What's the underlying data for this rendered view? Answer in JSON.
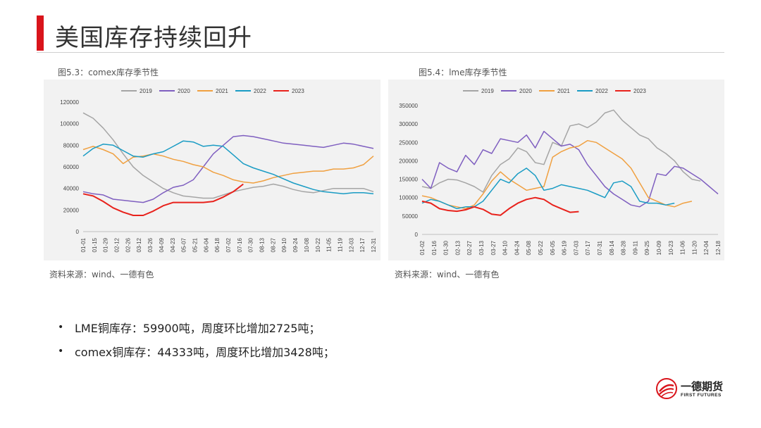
{
  "header": {
    "title": "美国库存持续回升"
  },
  "figures": [
    {
      "caption": "图5.3：comex库存季节性",
      "source": "资料来源：wind、一德有色"
    },
    {
      "caption": "图5.4：lme库存季节性",
      "source": "资料来源：wind、一德有色"
    }
  ],
  "bullets": [
    {
      "text": "LME铜库存：59900吨，周度环比增加2725吨；"
    },
    {
      "text": "comex铜库存：44333吨，周度环比增加3428吨；"
    }
  ],
  "logo": {
    "cn": "一德期货",
    "en": "FIRST FUTURES"
  },
  "chart_data": [
    {
      "type": "line",
      "title": "",
      "xlabel": "",
      "ylabel": "",
      "ylim": [
        0,
        120000
      ],
      "yticks": [
        0,
        20000,
        40000,
        60000,
        80000,
        100000,
        120000
      ],
      "xticks": [
        "01-01",
        "01-15",
        "01-29",
        "02-12",
        "02-26",
        "03-12",
        "03-26",
        "04-09",
        "04-23",
        "05-07",
        "05-21",
        "06-04",
        "06-18",
        "07-02",
        "07-16",
        "07-30",
        "08-13",
        "08-27",
        "09-10",
        "09-24",
        "10-08",
        "10-22",
        "11-05",
        "11-19",
        "12-03",
        "12-17",
        "12-31"
      ],
      "grid": false,
      "legend": "top",
      "series": [
        {
          "name": "2019",
          "color": "#a5a5a5",
          "values": [
            110000,
            105000,
            96000,
            85000,
            72000,
            60000,
            52000,
            46000,
            40000,
            36000,
            33000,
            32000,
            31000,
            31000,
            34000,
            37000,
            39000,
            41000,
            42000,
            44000,
            42000,
            39000,
            37000,
            36000,
            38000,
            40000,
            40000,
            40000,
            40000,
            37000
          ]
        },
        {
          "name": "2020",
          "color": "#7f5fc0",
          "values": [
            37000,
            35000,
            34000,
            30000,
            29000,
            28000,
            27000,
            30000,
            36000,
            41000,
            43000,
            48000,
            60000,
            72000,
            80000,
            88000,
            89000,
            88000,
            86000,
            84000,
            82000,
            81000,
            80000,
            79000,
            78000,
            80000,
            82000,
            81000,
            79000,
            77000
          ]
        },
        {
          "name": "2021",
          "color": "#f0a040",
          "values": [
            76000,
            79000,
            76000,
            72000,
            63000,
            69000,
            70000,
            72000,
            70000,
            67000,
            65000,
            62000,
            60000,
            55000,
            52000,
            48000,
            46000,
            45000,
            47000,
            50000,
            52000,
            54000,
            55000,
            56000,
            56000,
            58000,
            58000,
            59000,
            62000,
            70000
          ]
        },
        {
          "name": "2022",
          "color": "#1a9cc4",
          "values": [
            70000,
            77000,
            81000,
            80000,
            75000,
            70000,
            69000,
            72000,
            74000,
            79000,
            84000,
            83000,
            79000,
            80000,
            79000,
            71000,
            63000,
            59000,
            56000,
            53000,
            49000,
            45000,
            42000,
            39000,
            37000,
            36000,
            35000,
            36000,
            36000,
            35000
          ]
        },
        {
          "name": "2023",
          "color": "#e8221c",
          "values": [
            35000,
            33000,
            28000,
            22000,
            18000,
            15000,
            15000,
            19000,
            24000,
            27000,
            27000,
            27000,
            27000,
            28000,
            32000,
            37000,
            44000
          ]
        }
      ]
    },
    {
      "type": "line",
      "title": "",
      "xlabel": "",
      "ylabel": "",
      "ylim": [
        0,
        350000
      ],
      "yticks": [
        0,
        50000,
        100000,
        150000,
        200000,
        250000,
        300000,
        350000
      ],
      "xticks": [
        "01-02",
        "01-16",
        "01-30",
        "02-13",
        "02-27",
        "03-13",
        "03-27",
        "04-10",
        "04-24",
        "05-08",
        "05-22",
        "06-05",
        "06-19",
        "07-03",
        "07-17",
        "07-31",
        "08-14",
        "08-28",
        "09-11",
        "09-25",
        "10-09",
        "10-23",
        "11-06",
        "11-20",
        "12-04",
        "12-18"
      ],
      "grid": false,
      "legend": "top",
      "series": [
        {
          "name": "2019",
          "color": "#a5a5a5",
          "values": [
            130000,
            125000,
            140000,
            150000,
            148000,
            140000,
            130000,
            115000,
            160000,
            190000,
            205000,
            235000,
            225000,
            195000,
            190000,
            250000,
            240000,
            295000,
            300000,
            290000,
            305000,
            330000,
            338000,
            310000,
            290000,
            270000,
            260000,
            235000,
            220000,
            200000,
            170000,
            150000,
            145000
          ]
        },
        {
          "name": "2020",
          "color": "#7f5fc0",
          "values": [
            150000,
            125000,
            195000,
            180000,
            170000,
            215000,
            190000,
            230000,
            220000,
            260000,
            255000,
            250000,
            270000,
            235000,
            280000,
            260000,
            240000,
            245000,
            230000,
            190000,
            160000,
            130000,
            110000,
            95000,
            80000,
            75000,
            90000,
            165000,
            160000,
            185000,
            180000,
            165000,
            150000,
            130000,
            110000
          ]
        },
        {
          "name": "2021",
          "color": "#f0a040",
          "values": [
            105000,
            100000,
            90000,
            80000,
            75000,
            70000,
            80000,
            110000,
            145000,
            170000,
            150000,
            135000,
            120000,
            125000,
            130000,
            210000,
            225000,
            235000,
            240000,
            255000,
            250000,
            235000,
            220000,
            205000,
            180000,
            140000,
            100000,
            90000,
            80000,
            75000,
            85000,
            90000
          ]
        },
        {
          "name": "2022",
          "color": "#1a9cc4",
          "values": [
            85000,
            95000,
            90000,
            80000,
            70000,
            75000,
            75000,
            90000,
            120000,
            150000,
            140000,
            165000,
            180000,
            160000,
            120000,
            125000,
            135000,
            130000,
            125000,
            120000,
            110000,
            100000,
            140000,
            145000,
            130000,
            90000,
            85000,
            85000,
            80000,
            85000
          ]
        },
        {
          "name": "2023",
          "color": "#e8221c",
          "values": [
            90000,
            85000,
            70000,
            65000,
            63000,
            67000,
            75000,
            68000,
            55000,
            52000,
            70000,
            85000,
            95000,
            100000,
            95000,
            80000,
            70000,
            60000,
            62000
          ]
        }
      ]
    }
  ]
}
